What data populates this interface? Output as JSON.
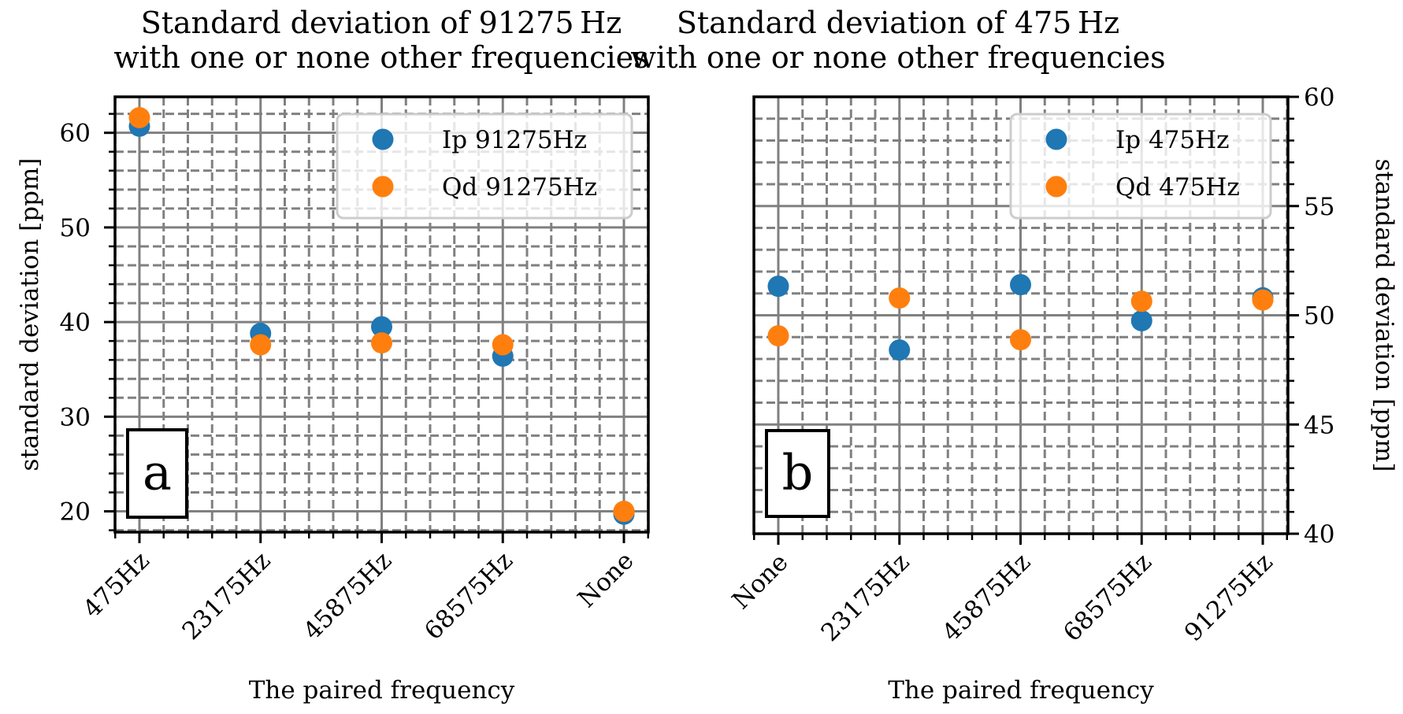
{
  "chart_data": [
    {
      "type": "scatter",
      "panel_label": "a",
      "title_lines": [
        "Standard deviation of 91275 Hz",
        "with one or none other frequencies"
      ],
      "xlabel": "The paired frequency",
      "ylabel": "standard deviation [ppm]",
      "ylabel_side": "left",
      "categories": [
        "475Hz",
        "23175Hz",
        "45875Hz",
        "68575Hz",
        "None"
      ],
      "ylim": [
        17.8,
        63.8
      ],
      "yticks": [
        20,
        30,
        40,
        50,
        60
      ],
      "ytick_minor_step": 2,
      "x_minor_per_major": 5,
      "grid": true,
      "legend_position": "top-right",
      "series": [
        {
          "name": "Ip 91275Hz",
          "color": "#1f77b4",
          "values": [
            60.7,
            38.8,
            39.5,
            36.4,
            19.7
          ]
        },
        {
          "name": "Qd 91275Hz",
          "color": "#ff7f0e",
          "values": [
            61.6,
            37.6,
            37.8,
            37.6,
            20.0
          ]
        }
      ]
    },
    {
      "type": "scatter",
      "panel_label": "b",
      "title_lines": [
        "Standard deviation of 475 Hz",
        "with one or none other frequencies"
      ],
      "xlabel": "The paired frequency",
      "ylabel": "standard deviation [ppm]",
      "ylabel_side": "right",
      "categories": [
        "None",
        "23175Hz",
        "45875Hz",
        "68575Hz",
        "91275Hz"
      ],
      "ylim": [
        40,
        60
      ],
      "yticks": [
        40,
        45,
        50,
        55,
        60
      ],
      "ytick_minor_step": 1,
      "x_minor_per_major": 5,
      "grid": true,
      "legend_position": "top-right",
      "series": [
        {
          "name": "Ip 475Hz",
          "color": "#1f77b4",
          "values": [
            51.33,
            48.41,
            51.4,
            49.75,
            50.8
          ]
        },
        {
          "name": "Qd 475Hz",
          "color": "#ff7f0e",
          "values": [
            49.06,
            50.79,
            48.88,
            50.64,
            50.7
          ]
        }
      ]
    }
  ]
}
